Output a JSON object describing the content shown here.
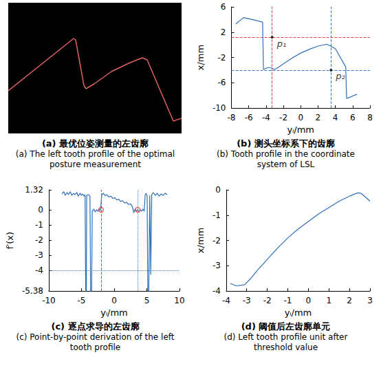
{
  "chart_data": [
    {
      "type": "image",
      "title": "(a) 最优位姿测量的左齿廓",
      "subtitle": "(a) The left tooth profile of the optimal posture measurement",
      "x": [
        0,
        95,
        98,
        110,
        113,
        125,
        150,
        175,
        195,
        202,
        240,
        252
      ],
      "y": [
        62,
        138,
        136,
        70,
        65,
        72,
        90,
        102,
        110,
        107,
        18,
        22
      ],
      "xlim": [
        0,
        252
      ],
      "ylim": [
        0,
        190
      ],
      "color": "#e06060",
      "tick_labels": false
    },
    {
      "type": "line",
      "title": "(b) 测头坐标系下的齿廓",
      "subtitle": "(b) Tooth profile in the coordinate system of LSL",
      "xlabel": "yₗ/mm",
      "ylabel": "x/mm",
      "x": [
        -7.5,
        -6.6,
        -5.6,
        -4.4,
        -4.3,
        -3.8,
        -3.5,
        -3.0,
        -2.5,
        -2.0,
        -1.0,
        0.0,
        1.0,
        2.0,
        3.0,
        3.3,
        4.0,
        5.2,
        5.3,
        6.5
      ],
      "y": [
        3.3,
        4.3,
        4.0,
        3.6,
        -3.9,
        -3.6,
        -3.6,
        -3.9,
        -3.5,
        -3.0,
        -2.1,
        -1.3,
        -0.7,
        -0.2,
        0.1,
        -0.1,
        -0.6,
        -3.5,
        -8.5,
        -7.8
      ],
      "color": "#2f6fba",
      "xlim": [
        -8,
        8
      ],
      "xticks": [
        -8,
        -6,
        -4,
        -2,
        0,
        2,
        4,
        6,
        8
      ],
      "ylim": [
        -10,
        6
      ],
      "yticks": [
        -10,
        -6,
        -2,
        2,
        6
      ],
      "grid": false,
      "guides": [
        {
          "axis": "x",
          "value": -3.3,
          "color": "#e8423f",
          "line_style": "dashed"
        },
        {
          "axis": "y",
          "value": 1.2,
          "color": "#e8423f",
          "line_style": "dashed"
        },
        {
          "axis": "x",
          "value": 3.5,
          "color": "#3a78c9",
          "line_style": "dashed"
        },
        {
          "axis": "y",
          "value": -4,
          "color": "#3a78c9",
          "line_style": "dashed"
        }
      ],
      "points": [
        {
          "label": "p₁",
          "x": -3.3,
          "y": 1.2,
          "color": "#000000",
          "marker": "circle"
        },
        {
          "label": "p₂",
          "x": 3.5,
          "y": -4,
          "color": "#000000",
          "marker": "circle"
        }
      ]
    },
    {
      "type": "line",
      "title": "(c) 逐点求导的左齿廓",
      "subtitle": "(c) Point-by-point derivation of the left tooth profile",
      "xlabel": "yₗ/mm",
      "ylabel": "f′(x)",
      "x": [
        -8,
        -7.7,
        -7.5,
        -7.2,
        -7,
        -6.7,
        -6.5,
        -6.2,
        -6,
        -5.7,
        -5.5,
        -5.2,
        -5,
        -4.8,
        -4.6,
        -4.45,
        -4.35,
        -4.25,
        -4.2,
        -3.9,
        -3.7,
        -3.6,
        -3.45,
        -3.35,
        -3.1,
        -2.9,
        -2.7,
        -2.5,
        -2.3,
        -2.1,
        -2.0,
        -1.9,
        -1.7,
        -1.4,
        -1.1,
        -0.8,
        -0.5,
        -0.2,
        0.1,
        0.4,
        0.7,
        1.0,
        1.3,
        1.6,
        1.9,
        2.2,
        2.5,
        2.8,
        3.0,
        3.2,
        3.4,
        3.6,
        3.8,
        4.0,
        4.2,
        4.4,
        4.6,
        4.75,
        4.9,
        5.05,
        5.15,
        5.3,
        5.45,
        5.6,
        5.75,
        6.0,
        6.3,
        6.6,
        6.9,
        7.2,
        7.5,
        7.8,
        8.1
      ],
      "y": [
        1.05,
        1.2,
        0.95,
        1.15,
        1.0,
        1.2,
        0.95,
        1.1,
        1.0,
        1.15,
        0.9,
        1.1,
        0.95,
        1.05,
        0.9,
        1.0,
        -5.38,
        -5.38,
        0.95,
        1.0,
        0.9,
        -5.38,
        -5.38,
        -0.1,
        0.05,
        -0.15,
        0.0,
        -0.1,
        0.05,
        -0.05,
        0.4,
        1.0,
        1.1,
        0.95,
        1.0,
        0.85,
        0.9,
        0.75,
        0.8,
        0.65,
        0.7,
        0.55,
        0.6,
        0.45,
        0.5,
        0.35,
        0.4,
        0.2,
        -0.2,
        0.05,
        -0.1,
        0.0,
        -0.15,
        0.0,
        -0.1,
        0.05,
        -0.1,
        1.0,
        1.1,
        0.9,
        -5.38,
        -5.38,
        0.95,
        -4.3,
        1.0,
        1.15,
        0.95,
        1.1,
        0.9,
        1.05,
        0.95,
        1.1,
        1.0
      ],
      "color": "#2f6fba",
      "xlim": [
        -10,
        10
      ],
      "xticks": [
        -10,
        -5,
        0,
        5,
        10
      ],
      "ylim": [
        -5.38,
        1.32
      ],
      "yticks": [
        -5.38,
        -4,
        -3,
        -2,
        -1,
        0,
        1.32
      ],
      "grid": false,
      "guides": [
        {
          "axis": "x",
          "value": -2,
          "color": "#e8423f",
          "line_style": "dashed"
        },
        {
          "axis": "x",
          "value": 3.6,
          "color": "#3a78c9",
          "line_style": "dotted"
        },
        {
          "axis": "y",
          "value": -4,
          "color": "#3a78c9",
          "line_style": "dotted"
        }
      ],
      "points": [
        {
          "x": -2,
          "y": 0,
          "color": "#e8423f",
          "marker": "circle"
        },
        {
          "x": 3.6,
          "y": 0,
          "color": "#e8423f",
          "marker": "circle"
        }
      ]
    },
    {
      "type": "line",
      "title": "(d) 阈值后左齿廓单元",
      "subtitle": "(d) Left tooth profile unit after threshold value",
      "xlabel": "yₗ/mm",
      "ylabel": "x/mm",
      "x": [
        -3.8,
        -3.5,
        -3.1,
        -2.8,
        -2.5,
        -2.0,
        -1.5,
        -1.0,
        -0.5,
        0.0,
        0.5,
        1.0,
        1.5,
        2.0,
        2.4,
        2.55,
        2.8,
        3.0
      ],
      "y": [
        -3.7,
        -3.8,
        -3.75,
        -3.5,
        -3.2,
        -2.75,
        -2.3,
        -1.9,
        -1.55,
        -1.25,
        -0.95,
        -0.7,
        -0.45,
        -0.25,
        -0.12,
        -0.13,
        -0.3,
        -0.45
      ],
      "color": "#2f6fba",
      "xlim": [
        -4,
        3
      ],
      "xticks": [
        -4,
        -3,
        -2,
        -1,
        0,
        1,
        2,
        3
      ],
      "ylim": [
        -4,
        0
      ],
      "yticks": [
        -4,
        -3,
        -2,
        -1,
        0
      ],
      "grid": false
    }
  ]
}
